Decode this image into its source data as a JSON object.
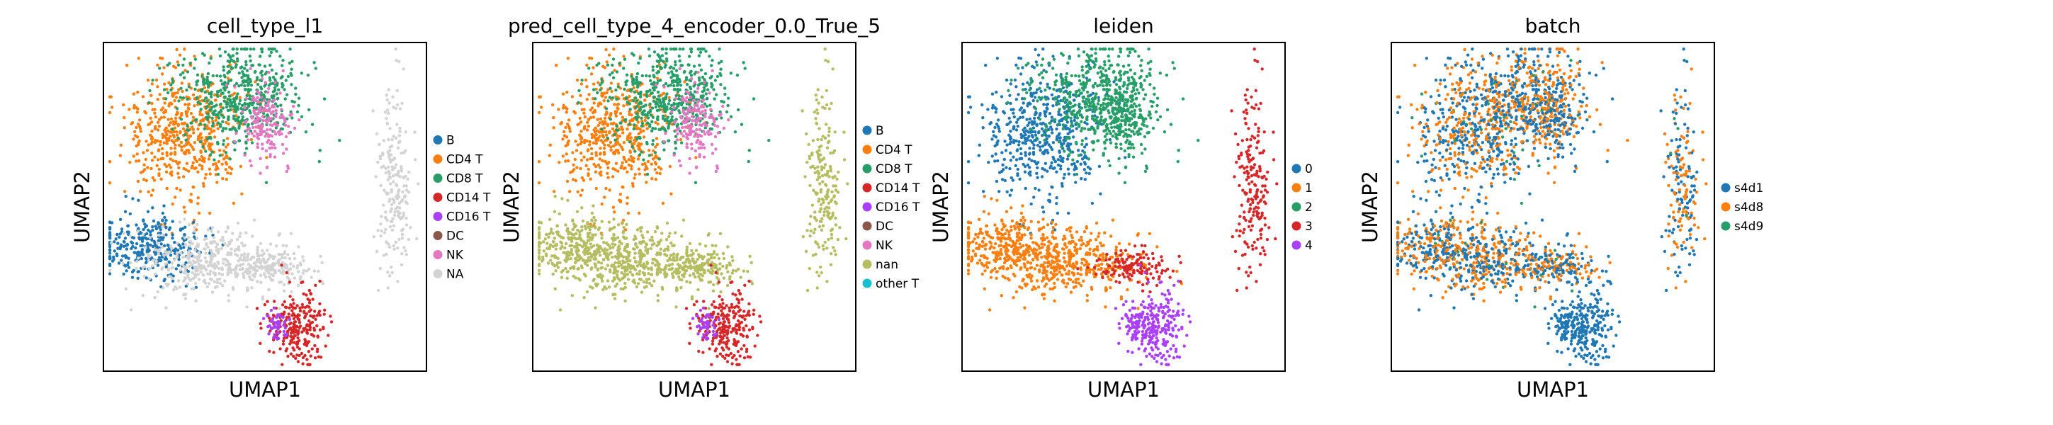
{
  "chart_data": [
    {
      "type": "scatter",
      "title": "cell_type_l1",
      "xlabel": "UMAP1",
      "ylabel": "UMAP2",
      "grid": false,
      "legend_placement": "right",
      "categories": [
        {
          "name": "B",
          "color": "#1f77b4"
        },
        {
          "name": "CD4 T",
          "color": "#ff7f0e"
        },
        {
          "name": "CD8 T",
          "color": "#279e68"
        },
        {
          "name": "CD14 T",
          "color": "#d62728"
        },
        {
          "name": "CD16 T",
          "color": "#aa40fc"
        },
        {
          "name": "DC",
          "color": "#8c564b"
        },
        {
          "name": "NK",
          "color": "#e377c2"
        },
        {
          "name": "NA",
          "color": "#d3d3d3"
        }
      ],
      "region_map": {
        "upper_left": "CD4 T",
        "upper_center": "CD8 T",
        "upper_right": "NK",
        "middle_left": "B",
        "middle_center": "NA",
        "bridge": "NA",
        "lower_tail": "CD14 T",
        "tail_left": "CD16 T",
        "right_island": "NA"
      }
    },
    {
      "type": "scatter",
      "title": "pred_cell_type_4_encoder_0.0_True_5",
      "xlabel": "UMAP1",
      "ylabel": "UMAP2",
      "grid": false,
      "legend_placement": "right",
      "categories": [
        {
          "name": "B",
          "color": "#1f77b4"
        },
        {
          "name": "CD4 T",
          "color": "#ff7f0e"
        },
        {
          "name": "CD8 T",
          "color": "#279e68"
        },
        {
          "name": "CD14 T",
          "color": "#d62728"
        },
        {
          "name": "CD16 T",
          "color": "#aa40fc"
        },
        {
          "name": "DC",
          "color": "#8c564b"
        },
        {
          "name": "NK",
          "color": "#e377c2"
        },
        {
          "name": "nan",
          "color": "#b5bd61"
        },
        {
          "name": "other T",
          "color": "#17becf"
        }
      ],
      "region_map": {
        "upper_left": "CD4 T",
        "upper_center": "CD8 T",
        "upper_right": "NK",
        "middle_left": "nan",
        "middle_center": "nan",
        "bridge": "nan",
        "lower_tail": "CD14 T",
        "tail_left": "CD16 T",
        "right_island": "nan"
      }
    },
    {
      "type": "scatter",
      "title": "leiden",
      "xlabel": "UMAP1",
      "ylabel": "UMAP2",
      "grid": false,
      "legend_placement": "right",
      "categories": [
        {
          "name": "0",
          "color": "#1f77b4"
        },
        {
          "name": "1",
          "color": "#ff7f0e"
        },
        {
          "name": "2",
          "color": "#279e68"
        },
        {
          "name": "3",
          "color": "#d62728"
        },
        {
          "name": "4",
          "color": "#aa40fc"
        }
      ],
      "region_map": {
        "upper_left": "0",
        "upper_center": "2",
        "upper_right": "2",
        "middle_left": "1",
        "middle_center": "1",
        "bridge": "3",
        "lower_tail": "4",
        "tail_left": "4",
        "right_island": "3"
      }
    },
    {
      "type": "scatter",
      "title": "batch",
      "xlabel": "UMAP1",
      "ylabel": "UMAP2",
      "grid": false,
      "legend_placement": "right",
      "categories": [
        {
          "name": "s4d1",
          "color": "#1f77b4"
        },
        {
          "name": "s4d8",
          "color": "#ff7f0e"
        },
        {
          "name": "s4d9",
          "color": "#279e68"
        }
      ],
      "region_map": {
        "upper_left": "mixed",
        "upper_center": "mixed",
        "upper_right": "mixed",
        "middle_left": "mixed",
        "middle_center": "mixed",
        "bridge": "mixed",
        "lower_tail": "s4d1",
        "tail_left": "s4d1",
        "right_island": "mixed"
      }
    }
  ]
}
